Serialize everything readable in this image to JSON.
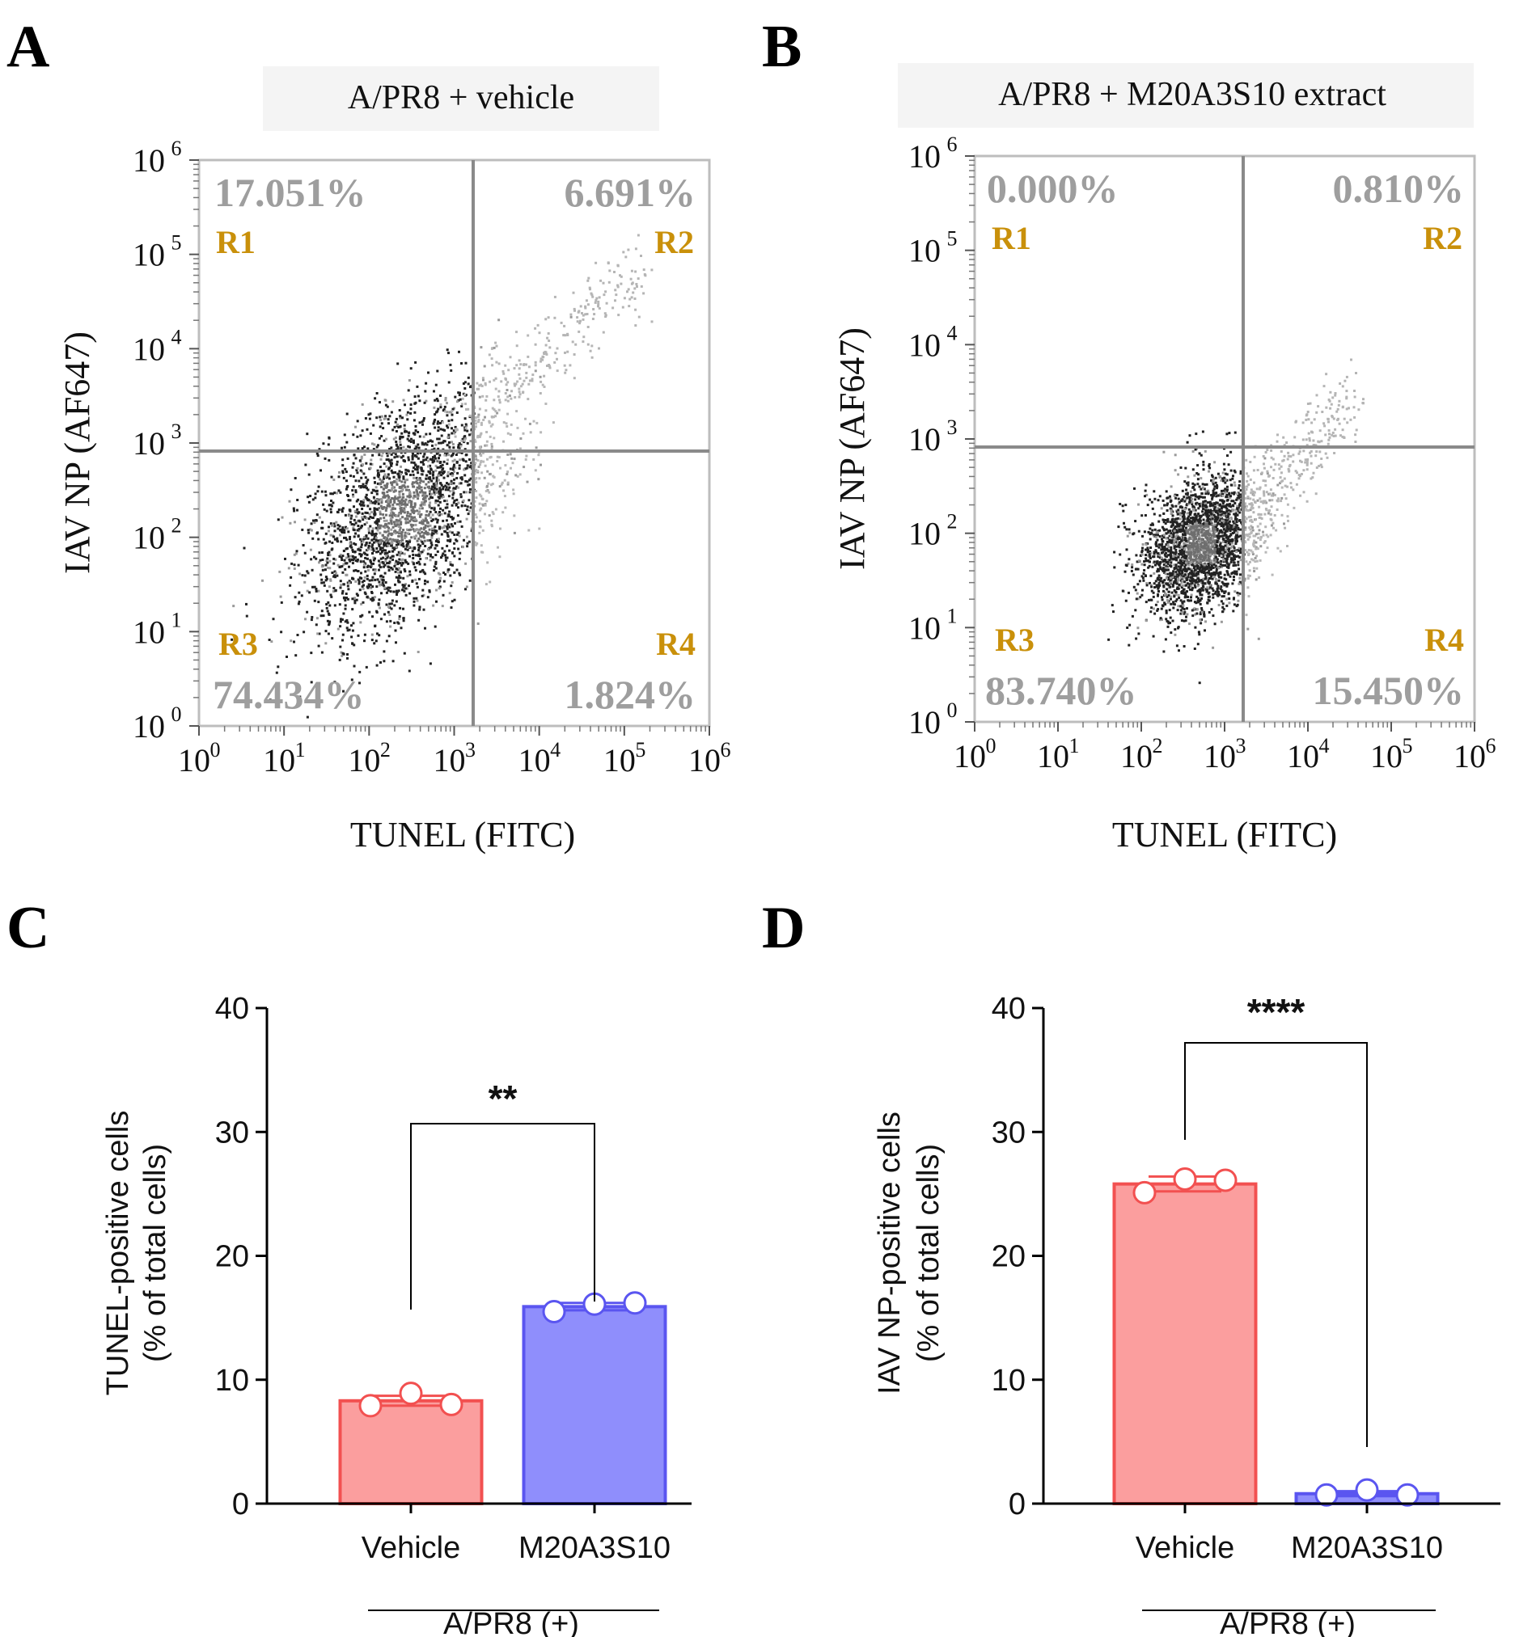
{
  "chart_data": [
    {
      "panel": "A",
      "type": "scatter",
      "title": "A/PR8 + vehicle",
      "xlabel": "TUNEL (FITC)",
      "ylabel": "IAV NP (AF647)",
      "axis_scale": "log10",
      "xlim": [
        1,
        1000000
      ],
      "ylim": [
        1,
        1000000
      ],
      "tick_labels": [
        "10",
        "10",
        "10",
        "10",
        "10",
        "10",
        "10"
      ],
      "tick_exponents": [
        "0",
        "1",
        "2",
        "3",
        "4",
        "5",
        "6"
      ],
      "gate_x": 1500,
      "gate_y": 800,
      "quadrants": [
        {
          "region": "R1",
          "percent": "17.051%"
        },
        {
          "region": "R2",
          "percent": "6.691%"
        },
        {
          "region": "R3",
          "percent": "74.434%"
        },
        {
          "region": "R4",
          "percent": "1.824%"
        }
      ],
      "population": {
        "center_log": [
          2.4,
          2.3
        ],
        "spread_log": [
          0.6,
          0.55
        ]
      }
    },
    {
      "panel": "B",
      "type": "scatter",
      "title": "A/PR8 + M20A3S10 extract",
      "xlabel": "TUNEL (FITC)",
      "ylabel": "IAV NP (AF647)",
      "axis_scale": "log10",
      "xlim": [
        1,
        1000000
      ],
      "ylim": [
        1,
        1000000
      ],
      "tick_labels": [
        "10",
        "10",
        "10",
        "10",
        "10",
        "10",
        "10"
      ],
      "tick_exponents": [
        "0",
        "1",
        "2",
        "3",
        "4",
        "5",
        "6"
      ],
      "gate_x": 1500,
      "gate_y": 1000,
      "quadrants": [
        {
          "region": "R1",
          "percent": "0.000%"
        },
        {
          "region": "R2",
          "percent": "0.810%"
        },
        {
          "region": "R3",
          "percent": "83.740%"
        },
        {
          "region": "R4",
          "percent": "15.450%"
        }
      ],
      "population": {
        "center_log": [
          2.7,
          1.9
        ],
        "spread_log": [
          0.35,
          0.35
        ]
      }
    },
    {
      "panel": "C",
      "type": "bar",
      "ylabel": "TUNEL-positive cells",
      "ylabel2": "(% of total cells)",
      "categories": [
        "Vehicle",
        "M20A3S10"
      ],
      "group_label": "A/PR8 (+)",
      "values": [
        8.3,
        15.9
      ],
      "errors": [
        0.4,
        0.3
      ],
      "points": [
        [
          7.9,
          8.9,
          8.0
        ],
        [
          15.5,
          16.1,
          16.2
        ]
      ],
      "colors": [
        "#fb9e9e",
        "#8f8efc"
      ],
      "edge_colors": [
        "#f25050",
        "#5a55f0"
      ],
      "ylim": [
        0,
        40
      ],
      "yticks": [
        "0",
        "10",
        "20",
        "30",
        "40"
      ],
      "significance": "**"
    },
    {
      "panel": "D",
      "type": "bar",
      "ylabel": "IAV NP-positive cells",
      "ylabel2": "(% of total cells)",
      "categories": [
        "Vehicle",
        "M20A3S10"
      ],
      "group_label": "A/PR8 (+)",
      "values": [
        25.8,
        0.8
      ],
      "errors": [
        0.6,
        0.2
      ],
      "points": [
        [
          25.1,
          26.2,
          26.1
        ],
        [
          0.7,
          1.1,
          0.7
        ]
      ],
      "colors": [
        "#fb9e9e",
        "#8f8efc"
      ],
      "edge_colors": [
        "#f25050",
        "#5a55f0"
      ],
      "ylim": [
        0,
        40
      ],
      "yticks": [
        "0",
        "10",
        "20",
        "30",
        "40"
      ],
      "significance": "****"
    }
  ],
  "colors": {
    "region_label": "#c9900a",
    "percent_text": "#9e9e9e",
    "gate_line": "#8a8a8a",
    "frame": "#bdbdbd"
  }
}
